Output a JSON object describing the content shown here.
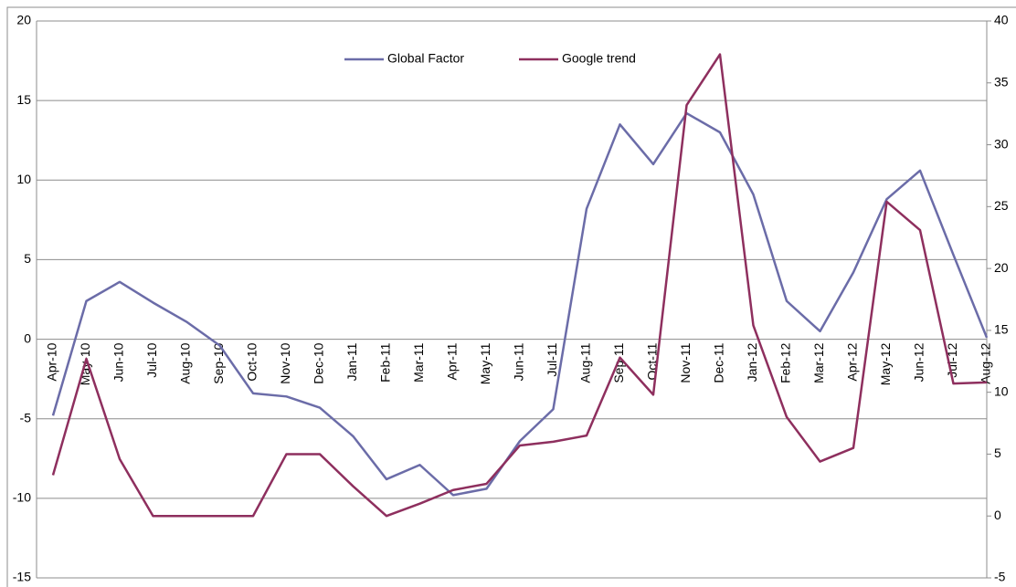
{
  "chart_data": {
    "type": "line",
    "categories": [
      "Apr-10",
      "May-10",
      "Jun-10",
      "Jul-10",
      "Aug-10",
      "Sep-10",
      "Oct-10",
      "Nov-10",
      "Dec-10",
      "Jan-11",
      "Feb-11",
      "Mar-11",
      "Apr-11",
      "May-11",
      "Jun-11",
      "Jul-11",
      "Aug-11",
      "Sep-11",
      "Oct-11",
      "Nov-11",
      "Dec-11",
      "Jan-12",
      "Feb-12",
      "Mar-12",
      "Apr-12",
      "May-12",
      "Jun-12",
      "Jul-12",
      "Aug-12"
    ],
    "series": [
      {
        "name": "Global Factor",
        "color": "#6b6ca8",
        "values": [
          -4.8,
          2.4,
          3.6,
          2.3,
          1.1,
          -0.4,
          -3.4,
          -3.6,
          -4.3,
          -6.1,
          -8.8,
          -7.9,
          -9.8,
          -9.4,
          -6.4,
          -4.4,
          8.2,
          13.5,
          11.0,
          14.2,
          13.0,
          9.1,
          2.4,
          0.5,
          4.2,
          8.8,
          10.6,
          5.3,
          0.1
        ]
      },
      {
        "name": "Google trend",
        "color": "#8e2f5e",
        "axis": "y2",
        "values": [
          3.3,
          12.7,
          4.6,
          0,
          0,
          0,
          0,
          5,
          5,
          2.4,
          0,
          1,
          2.1,
          2.6,
          5.7,
          6,
          6.5,
          12.8,
          9.8,
          33.2,
          37.3,
          15.4,
          8.0,
          4.4,
          5.5,
          25.4,
          23.1,
          10.7,
          10.8
        ]
      }
    ],
    "ylim": [
      -15,
      20
    ],
    "yticks": [
      -15,
      -10,
      -5,
      0,
      5,
      10,
      15,
      20
    ],
    "y2lim": [
      -5,
      40
    ],
    "y2ticks": [
      -5,
      0,
      5,
      10,
      15,
      20,
      25,
      30,
      35,
      40
    ],
    "grid": true,
    "legend": "top"
  }
}
